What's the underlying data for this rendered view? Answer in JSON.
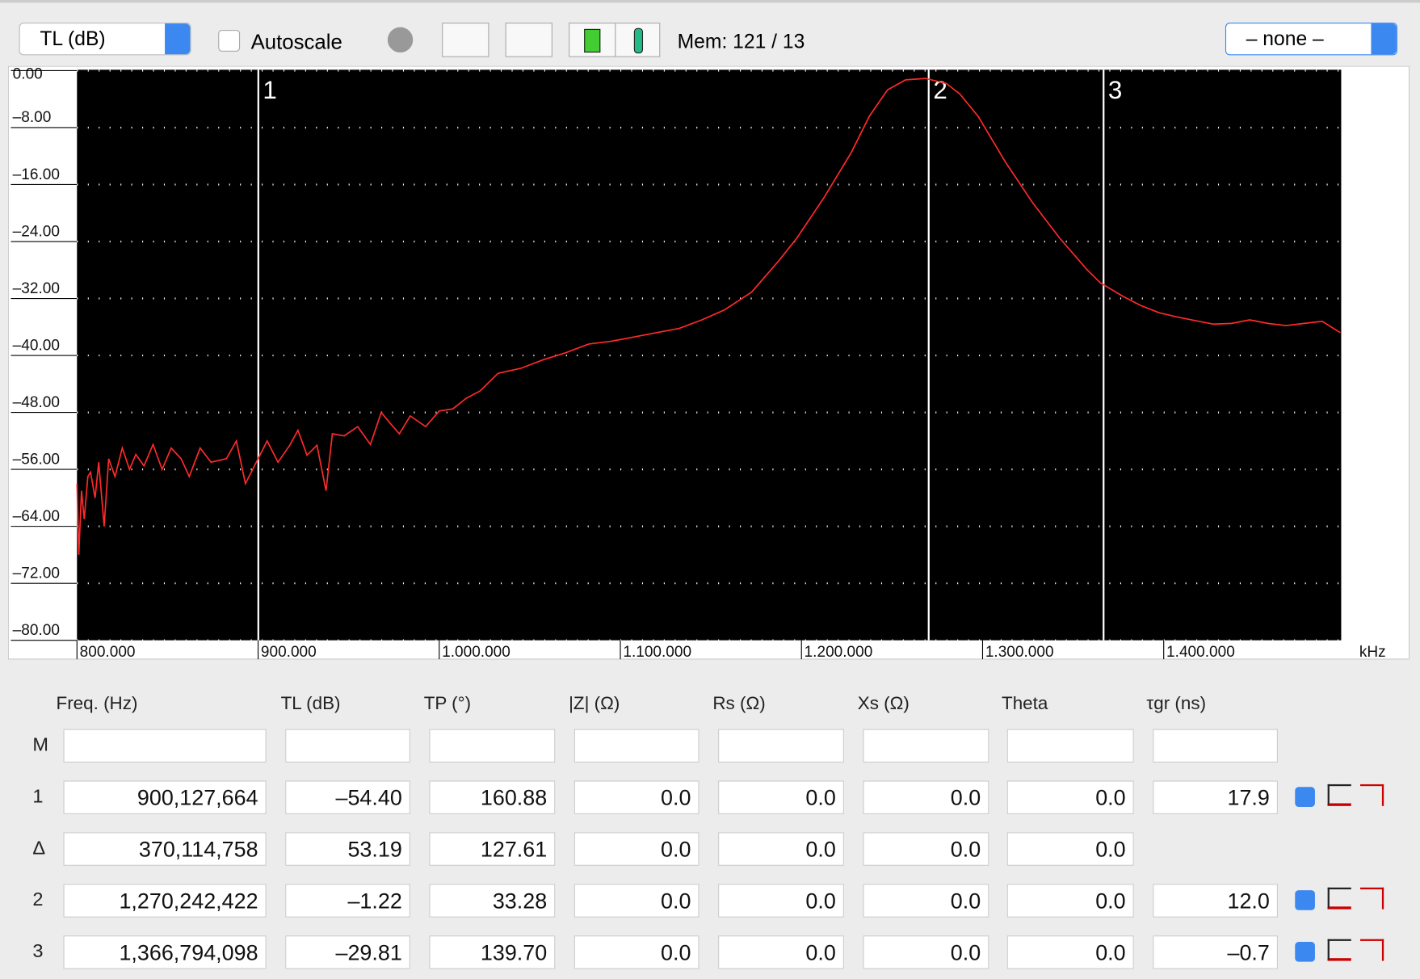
{
  "toolbar": {
    "display_select": "TL (dB)",
    "autoscale": "Autoscale",
    "memory": "Mem: 121 / 13",
    "preset_select": "– none –"
  },
  "chart_data": {
    "type": "line",
    "xlim": [
      800,
      1498
    ],
    "ylim": [
      -80,
      0
    ],
    "x_unit": "kHz",
    "grid": true,
    "xticks": [
      {
        "value": 800,
        "label": "800.000"
      },
      {
        "value": 900,
        "label": "900.000"
      },
      {
        "value": 1000,
        "label": "1.000.000"
      },
      {
        "value": 1100,
        "label": "1.100.000"
      },
      {
        "value": 1200,
        "label": "1.200.000"
      },
      {
        "value": 1300,
        "label": "1.300.000"
      },
      {
        "value": 1400,
        "label": "1.400.000"
      }
    ],
    "yticks": [
      {
        "value": 0,
        "label": "0.00"
      },
      {
        "value": -8,
        "label": "–8.00"
      },
      {
        "value": -16,
        "label": "–16.00"
      },
      {
        "value": -24,
        "label": "–24.00"
      },
      {
        "value": -32,
        "label": "–32.00"
      },
      {
        "value": -40,
        "label": "–40.00"
      },
      {
        "value": -48,
        "label": "–48.00"
      },
      {
        "value": -56,
        "label": "–56.00"
      },
      {
        "value": -64,
        "label": "–64.00"
      },
      {
        "value": -72,
        "label": "–72.00"
      },
      {
        "value": -80,
        "label": "–80.00"
      }
    ],
    "markers": [
      {
        "label": "1",
        "x": 900.127664
      },
      {
        "label": "2",
        "x": 1270.242422
      },
      {
        "label": "3",
        "x": 1366.794098
      }
    ],
    "series": [
      {
        "color": "#ff2a2a",
        "x": [
          800,
          801,
          802.5,
          804,
          806,
          807.5,
          810,
          812,
          815,
          817.5,
          821,
          825,
          829,
          832.5,
          837,
          842,
          847,
          852,
          857.5,
          862,
          868,
          874,
          882.5,
          888,
          893,
          900,
          905,
          911,
          917.5,
          922,
          927,
          932.5,
          937.5,
          941,
          947.5,
          955,
          962,
          968,
          972.5,
          978,
          984,
          992.5,
          1000,
          1007.5,
          1015,
          1022.5,
          1032.5,
          1045,
          1057.5,
          1070,
          1082.5,
          1095,
          1107.5,
          1120,
          1132.5,
          1145,
          1157.5,
          1172.5,
          1187.5,
          1197.5,
          1212.5,
          1227.5,
          1237.5,
          1247.5,
          1257.5,
          1268.5,
          1280,
          1287.5,
          1297.5,
          1312.5,
          1327.5,
          1342.5,
          1357.5,
          1365,
          1377.5,
          1387.5,
          1397.5,
          1407.5,
          1417.5,
          1427.5,
          1437.5,
          1447.5,
          1457.5,
          1467.5,
          1477.5,
          1487.5,
          1497.5
        ],
        "values": [
          -58,
          -68,
          -59,
          -63,
          -57,
          -56.4,
          -60,
          -55,
          -64,
          -54.5,
          -57,
          -53,
          -56,
          -53.9,
          -55.5,
          -52.5,
          -56,
          -53,
          -54.5,
          -57,
          -53,
          -55,
          -54.5,
          -52,
          -58,
          -54.5,
          -52,
          -55,
          -52.6,
          -50.5,
          -54,
          -52.6,
          -59,
          -51,
          -51.3,
          -50,
          -52.5,
          -48,
          -49.4,
          -51,
          -48.5,
          -50,
          -47.8,
          -47.5,
          -46,
          -45,
          -42.5,
          -41.8,
          -40.6,
          -39.6,
          -38.4,
          -38,
          -37.4,
          -36.8,
          -36.2,
          -35,
          -33.6,
          -31.1,
          -26.7,
          -23.5,
          -17.8,
          -11.5,
          -6.4,
          -2.7,
          -1.3,
          -1.1,
          -1.8,
          -3.3,
          -6.4,
          -12.8,
          -18.5,
          -23.5,
          -27.9,
          -29.8,
          -31.7,
          -33,
          -34,
          -34.6,
          -35.1,
          -35.6,
          -35.5,
          -35,
          -35.5,
          -35.8,
          -35.5,
          -35.2,
          -36.8
        ]
      }
    ]
  },
  "table": {
    "headers": [
      "Freq. (Hz)",
      "TL (dB)",
      "TP (°)",
      "|Z| (Ω)",
      "Rs (Ω)",
      "Xs (Ω)",
      "Theta",
      "τgr (ns)"
    ],
    "empty_row_label": "M",
    "rows": [
      {
        "label": "1",
        "cells": [
          "900,127,664",
          "–54.40",
          "160.88",
          "0.0",
          "0.0",
          "0.0",
          "0.0",
          "17.9"
        ]
      },
      {
        "label": "Δ",
        "cells": [
          "370,114,758",
          "53.19",
          "127.61",
          "0.0",
          "0.0",
          "0.0",
          "0.0"
        ]
      },
      {
        "label": "2",
        "cells": [
          "1,270,242,422",
          "–1.22",
          "33.28",
          "0.0",
          "0.0",
          "0.0",
          "0.0",
          "12.0"
        ]
      },
      {
        "label": "3",
        "cells": [
          "1,366,794,098",
          "–29.81",
          "139.70",
          "0.0",
          "0.0",
          "0.0",
          "0.0",
          "–0.7"
        ]
      }
    ]
  }
}
